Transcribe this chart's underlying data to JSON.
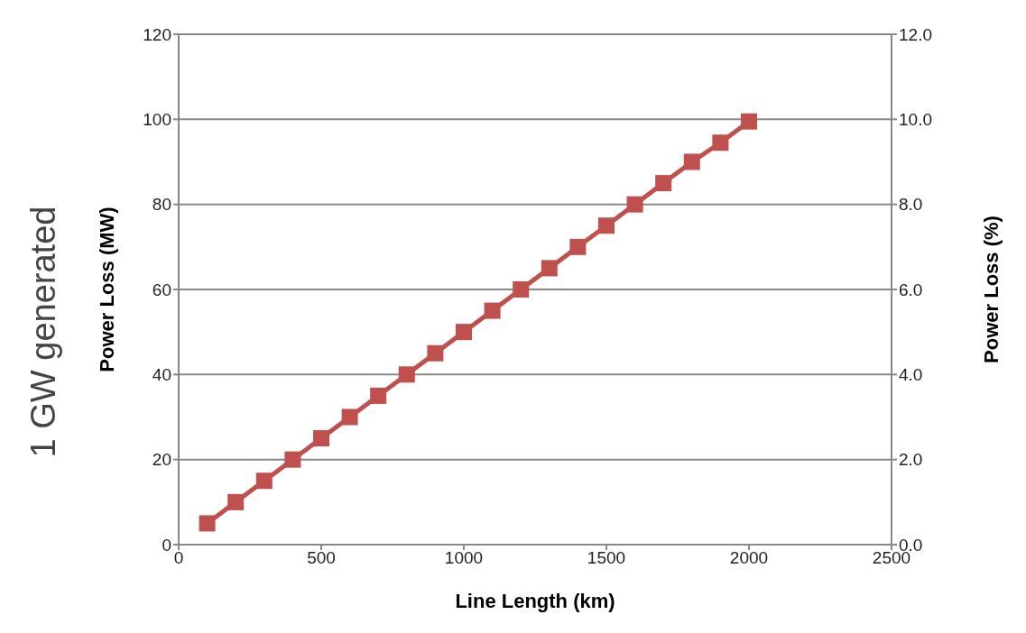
{
  "chart_data": {
    "type": "line",
    "x": [
      100,
      200,
      300,
      400,
      500,
      600,
      700,
      800,
      900,
      1000,
      1100,
      1200,
      1300,
      1400,
      1500,
      1600,
      1700,
      1800,
      1900,
      2000
    ],
    "series": [
      {
        "color": "#c0504d",
        "values": [
          5,
          10,
          15,
          20,
          25,
          30,
          35,
          40,
          45,
          50,
          55,
          60,
          65,
          70,
          75,
          80,
          85,
          90,
          94.5,
          99.5
        ]
      }
    ],
    "xlabel": "Line Length (km)",
    "ylabel": "Power Loss (MW)",
    "y2label": "Power Loss (%)",
    "annotations": [
      "1 GW generated"
    ],
    "xlim": [
      0,
      2500
    ],
    "xticks": [
      0,
      500,
      1000,
      1500,
      2000,
      2500
    ],
    "ylim": [
      0,
      120
    ],
    "yticks": [
      0,
      20,
      40,
      60,
      80,
      100,
      120
    ],
    "y2lim": [
      0,
      12
    ],
    "y2ticks": [
      {
        "value": 0,
        "label": "0.0"
      },
      {
        "value": 2,
        "label": "2.0"
      },
      {
        "value": 4,
        "label": "4.0"
      },
      {
        "value": 6,
        "label": "6.0"
      },
      {
        "value": 8,
        "label": "8.0"
      },
      {
        "value": 10,
        "label": "10.0"
      },
      {
        "value": 12,
        "label": "12.0"
      }
    ],
    "grid": "y",
    "marker": "square",
    "line_style": "solid",
    "legend": false
  }
}
